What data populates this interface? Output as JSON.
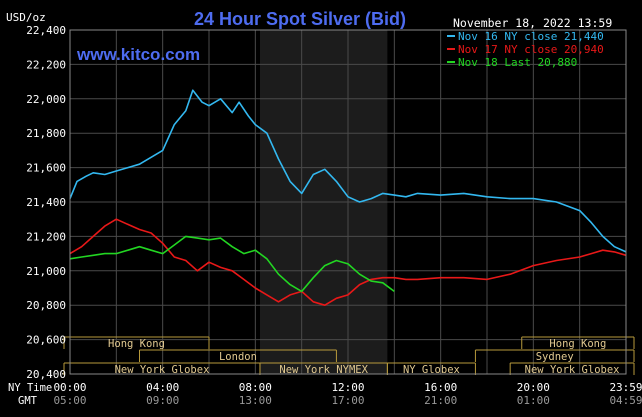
{
  "header": {
    "title": "24 Hour Spot Silver (Bid)",
    "units": "USD/oz",
    "date": "November 18, 2022 13:59",
    "watermark": "www.kitco.com"
  },
  "colors": {
    "background": "#000000",
    "grid": "#4a4a4a",
    "axis_text": "#ffffff",
    "title": "#4e6cf0",
    "watermark": "#4e6cf0",
    "nov16": "#33b8f0",
    "nov17": "#e81818",
    "nov18": "#22d622",
    "nymex_shade": "#1c1c1c",
    "session_line": "#b79a3c",
    "session_text": "#e0c890"
  },
  "chart_data": {
    "type": "line",
    "title": "24 Hour Spot Silver (Bid)",
    "ylabel": "USD/oz",
    "ylim": [
      20.4,
      22.4
    ],
    "yticks": [
      "22,400",
      "22,200",
      "22,000",
      "21,800",
      "21,600",
      "21,400",
      "21,200",
      "21,000",
      "20,800",
      "20,600",
      "20,400"
    ],
    "ytick_values": [
      22.4,
      22.2,
      22.0,
      21.8,
      21.6,
      21.4,
      21.2,
      21.0,
      20.8,
      20.6,
      20.4
    ],
    "xlim": [
      0,
      24
    ],
    "xticks": [
      {
        "ny": "00:00",
        "gmt": "05:00",
        "hour": 0
      },
      {
        "ny": "04:00",
        "gmt": "09:00",
        "hour": 4
      },
      {
        "ny": "08:00",
        "gmt": "13:00",
        "hour": 8
      },
      {
        "ny": "12:00",
        "gmt": "17:00",
        "hour": 12
      },
      {
        "ny": "16:00",
        "gmt": "21:00",
        "hour": 16
      },
      {
        "ny": "20:00",
        "gmt": "01:00",
        "hour": 20
      },
      {
        "ny": "23:59",
        "gmt": "04:59",
        "hour": 24
      }
    ],
    "xaxis_row_labels": {
      "ny": "NY Time",
      "gmt": "GMT"
    },
    "grid": true,
    "legend_position": "top-right",
    "nymex_hours": [
      8.2,
      13.7
    ],
    "series": [
      {
        "name": "Nov 16 NY close 21,440",
        "color_key": "nov16",
        "x": [
          0,
          0.3,
          0.7,
          1.0,
          1.5,
          2.0,
          2.5,
          3.0,
          3.5,
          4.0,
          4.5,
          5.0,
          5.3,
          5.7,
          6.0,
          6.5,
          7.0,
          7.3,
          7.7,
          8.0,
          8.5,
          9.0,
          9.5,
          10.0,
          10.5,
          11.0,
          11.5,
          12.0,
          12.5,
          13.0,
          13.5,
          14.0,
          14.5,
          15.0,
          16.0,
          17.0,
          18.0,
          19.0,
          20.0,
          21.0,
          22.0,
          22.5,
          23.0,
          23.5,
          24.0
        ],
        "y": [
          21.42,
          21.52,
          21.55,
          21.57,
          21.56,
          21.58,
          21.6,
          21.62,
          21.66,
          21.7,
          21.85,
          21.93,
          22.05,
          21.98,
          21.96,
          22.0,
          21.92,
          21.98,
          21.9,
          21.85,
          21.8,
          21.65,
          21.52,
          21.45,
          21.56,
          21.59,
          21.52,
          21.43,
          21.4,
          21.42,
          21.45,
          21.44,
          21.43,
          21.45,
          21.44,
          21.45,
          21.43,
          21.42,
          21.42,
          21.4,
          21.35,
          21.28,
          21.2,
          21.14,
          21.11
        ]
      },
      {
        "name": "Nov 17 NY close 20,940",
        "color_key": "nov17",
        "x": [
          0,
          0.5,
          1.0,
          1.5,
          2.0,
          2.5,
          3.0,
          3.5,
          4.0,
          4.5,
          5.0,
          5.5,
          6.0,
          6.5,
          7.0,
          7.5,
          8.0,
          8.5,
          9.0,
          9.5,
          10.0,
          10.5,
          11.0,
          11.5,
          12.0,
          12.5,
          13.0,
          13.5,
          14.0,
          14.5,
          15.0,
          16.0,
          17.0,
          18.0,
          19.0,
          20.0,
          21.0,
          22.0,
          22.5,
          23.0,
          23.5,
          24.0
        ],
        "y": [
          21.1,
          21.14,
          21.2,
          21.26,
          21.3,
          21.27,
          21.24,
          21.22,
          21.16,
          21.08,
          21.06,
          21.0,
          21.05,
          21.02,
          21.0,
          20.95,
          20.9,
          20.86,
          20.82,
          20.86,
          20.88,
          20.82,
          20.8,
          20.84,
          20.86,
          20.92,
          20.95,
          20.96,
          20.96,
          20.95,
          20.95,
          20.96,
          20.96,
          20.95,
          20.98,
          21.03,
          21.06,
          21.08,
          21.1,
          21.12,
          21.11,
          21.09
        ]
      },
      {
        "name": "Nov 18 Last 20,880",
        "color_key": "nov18",
        "x": [
          0,
          0.5,
          1.0,
          1.5,
          2.0,
          2.5,
          3.0,
          3.5,
          4.0,
          4.5,
          5.0,
          5.5,
          6.0,
          6.5,
          7.0,
          7.5,
          8.0,
          8.5,
          9.0,
          9.5,
          10.0,
          10.5,
          11.0,
          11.5,
          12.0,
          12.5,
          13.0,
          13.5,
          14.0
        ],
        "y": [
          21.07,
          21.08,
          21.09,
          21.1,
          21.1,
          21.12,
          21.14,
          21.12,
          21.1,
          21.15,
          21.2,
          21.19,
          21.18,
          21.19,
          21.14,
          21.1,
          21.12,
          21.07,
          20.98,
          20.92,
          20.88,
          20.96,
          21.03,
          21.06,
          21.04,
          20.98,
          20.94,
          20.93,
          20.88
        ]
      }
    ]
  },
  "sessions": [
    {
      "name": "Hong Kong",
      "start": -1.5,
      "end": 6.0,
      "row": 0
    },
    {
      "name": "Hong Kong",
      "start": 19.5,
      "end": 25.0,
      "row": 0
    },
    {
      "name": "London",
      "start": 3.0,
      "end": 11.5,
      "row": 1
    },
    {
      "name": "Sydney",
      "start": 17.5,
      "end": 25.0,
      "row": 1
    },
    {
      "name": "New York Globex",
      "start": -1.5,
      "end": 8.2,
      "row": 2
    },
    {
      "name": "New York NYMEX",
      "start": 8.2,
      "end": 13.7,
      "row": 2
    },
    {
      "name": "NY Globex",
      "start": 13.7,
      "end": 17.5,
      "row": 2
    },
    {
      "name": "New York Globex",
      "start": 19.0,
      "end": 25.0,
      "row": 2
    }
  ]
}
